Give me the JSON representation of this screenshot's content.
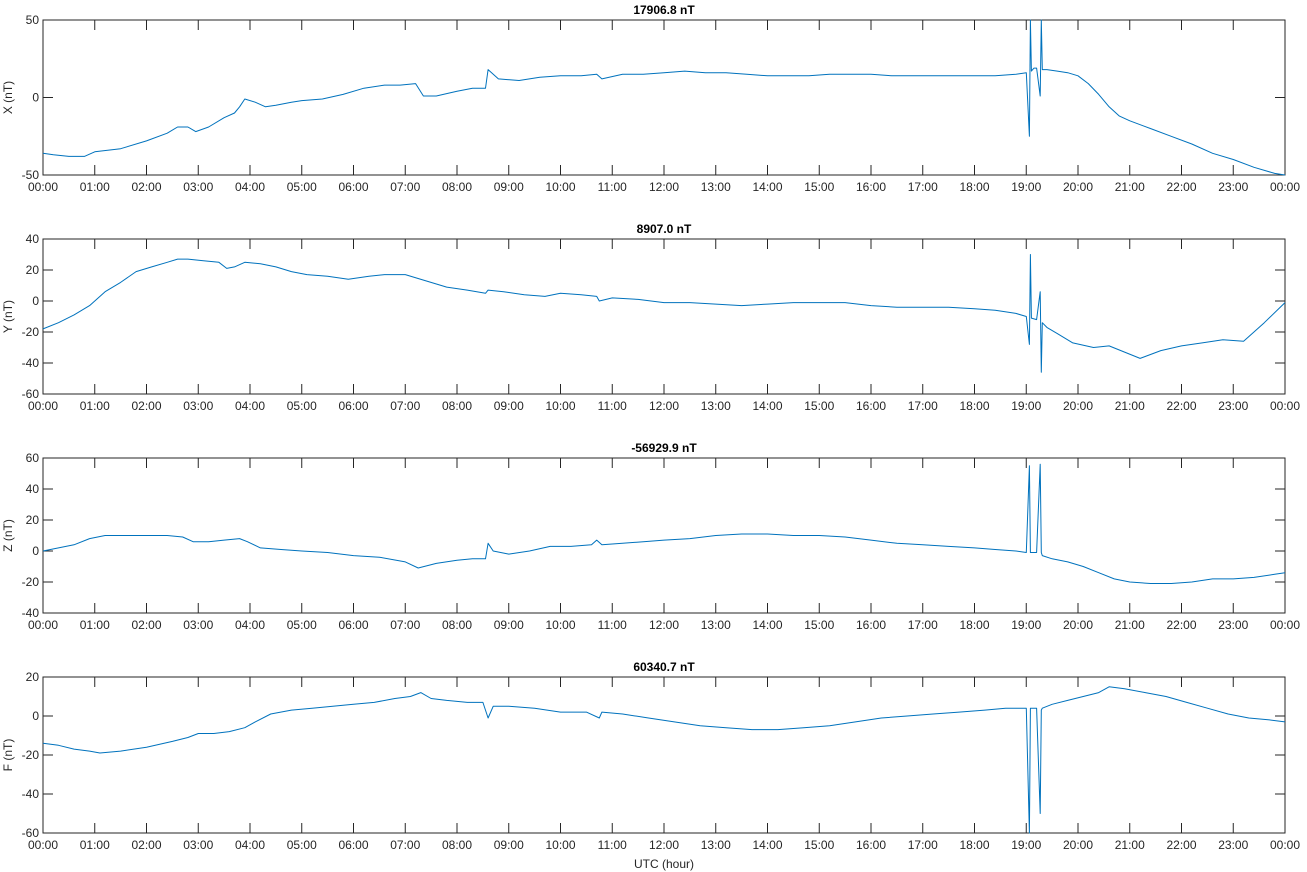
{
  "chart_data": [
    {
      "type": "line",
      "title": "17906.8 nT",
      "ylabel": "X (nT)",
      "xlabel": "",
      "xlim": [
        0,
        24
      ],
      "ylim": [
        -50,
        50
      ],
      "yticks": [
        -50,
        0,
        50
      ],
      "color": "#0072bd",
      "series": [
        {
          "x": [
            0,
            0.2,
            0.5,
            0.8,
            1.0,
            1.5,
            2.0,
            2.4,
            2.6,
            2.8,
            2.95,
            3.2,
            3.5,
            3.7,
            3.8,
            3.9,
            4.1,
            4.3,
            4.5,
            4.8,
            5.0,
            5.4,
            5.8,
            6.2,
            6.6,
            6.9,
            7.2,
            7.35,
            7.6,
            8.0,
            8.3,
            8.55,
            8.6,
            8.8,
            9.2,
            9.6,
            10.0,
            10.4,
            10.7,
            10.8,
            11.2,
            11.6,
            12.0,
            12.4,
            12.8,
            13.2,
            13.6,
            14.0,
            14.4,
            14.8,
            15.2,
            15.6,
            16.0,
            16.4,
            16.8,
            17.2,
            17.6,
            18.0,
            18.4,
            18.8,
            19.0,
            19.06,
            19.08,
            19.1,
            19.15,
            19.2,
            19.27,
            19.29,
            19.31,
            19.4,
            19.6,
            19.8,
            20.0,
            20.2,
            20.4,
            20.6,
            20.8,
            21.0,
            21.4,
            21.8,
            22.2,
            22.6,
            23.0,
            23.4,
            23.8,
            24.0
          ],
          "y": [
            -36,
            -37,
            -38,
            -38,
            -35,
            -33,
            -28,
            -23,
            -19,
            -19,
            -22,
            -19,
            -13,
            -10,
            -6,
            -1,
            -3,
            -6,
            -5,
            -3,
            -2,
            -1,
            2,
            6,
            8,
            8,
            9,
            1,
            1,
            4,
            6,
            6,
            18,
            12,
            11,
            13,
            14,
            14,
            15,
            12,
            15,
            15,
            16,
            17,
            16,
            16,
            15,
            14,
            14,
            14,
            15,
            15,
            15,
            14,
            14,
            14,
            14,
            14,
            14,
            15,
            16,
            -25,
            50,
            17,
            19,
            19,
            1,
            50,
            18,
            18,
            17,
            16,
            14,
            9,
            2,
            -6,
            -12,
            -15,
            -20,
            -25,
            -30,
            -36,
            -40,
            -45,
            -49,
            -50
          ]
        }
      ]
    },
    {
      "type": "line",
      "title": "8907.0 nT",
      "ylabel": "Y (nT)",
      "xlabel": "",
      "xlim": [
        0,
        24
      ],
      "ylim": [
        -60,
        40
      ],
      "yticks": [
        -60,
        -40,
        -20,
        0,
        20,
        40
      ],
      "color": "#0072bd",
      "series": [
        {
          "x": [
            0,
            0.3,
            0.6,
            0.9,
            1.2,
            1.5,
            1.8,
            2.1,
            2.4,
            2.6,
            2.8,
            3.1,
            3.4,
            3.55,
            3.7,
            3.9,
            4.2,
            4.5,
            4.8,
            5.1,
            5.5,
            5.9,
            6.3,
            6.6,
            7.0,
            7.4,
            7.8,
            8.2,
            8.55,
            8.6,
            8.9,
            9.3,
            9.7,
            10.0,
            10.4,
            10.7,
            10.75,
            11.0,
            11.5,
            12.0,
            12.5,
            13.0,
            13.5,
            14.0,
            14.5,
            15.0,
            15.5,
            16.0,
            16.5,
            17.0,
            17.5,
            18.0,
            18.4,
            18.8,
            19.0,
            19.06,
            19.08,
            19.1,
            19.2,
            19.27,
            19.29,
            19.31,
            19.4,
            19.6,
            19.9,
            20.3,
            20.6,
            20.9,
            21.2,
            21.6,
            22.0,
            22.4,
            22.8,
            23.2,
            23.6,
            24.0
          ],
          "y": [
            -18,
            -14,
            -9,
            -3,
            6,
            12,
            19,
            22,
            25,
            27,
            27,
            26,
            25,
            21,
            22,
            25,
            24,
            22,
            19,
            17,
            16,
            14,
            16,
            17,
            17,
            13,
            9,
            7,
            5,
            7,
            6,
            4,
            3,
            5,
            4,
            3,
            0,
            2,
            1,
            -1,
            -1,
            -2,
            -3,
            -2,
            -1,
            -1,
            -1,
            -3,
            -4,
            -4,
            -4,
            -5,
            -6,
            -8,
            -10,
            -28,
            30,
            -11,
            -12,
            6,
            -46,
            -14,
            -17,
            -21,
            -27,
            -30,
            -29,
            -33,
            -37,
            -32,
            -29,
            -27,
            -25,
            -26,
            -14,
            -1
          ]
        }
      ]
    },
    {
      "type": "line",
      "title": "-56929.9 nT",
      "ylabel": "Z (nT)",
      "xlabel": "",
      "xlim": [
        0,
        24
      ],
      "ylim": [
        -40,
        60
      ],
      "yticks": [
        -40,
        -20,
        0,
        20,
        40,
        60
      ],
      "color": "#0072bd",
      "series": [
        {
          "x": [
            0,
            0.3,
            0.6,
            0.9,
            1.2,
            1.6,
            2.0,
            2.4,
            2.7,
            2.9,
            3.2,
            3.5,
            3.8,
            3.95,
            4.2,
            4.6,
            5.0,
            5.5,
            6.0,
            6.5,
            7.0,
            7.25,
            7.6,
            8.0,
            8.3,
            8.55,
            8.6,
            8.7,
            9.0,
            9.4,
            9.8,
            10.2,
            10.6,
            10.7,
            10.8,
            11.2,
            11.6,
            12.0,
            12.5,
            13.0,
            13.5,
            14.0,
            14.5,
            15.0,
            15.5,
            16.0,
            16.5,
            17.0,
            17.5,
            18.0,
            18.4,
            18.8,
            19.0,
            19.06,
            19.08,
            19.1,
            19.2,
            19.27,
            19.29,
            19.31,
            19.5,
            19.8,
            20.1,
            20.4,
            20.7,
            21.0,
            21.4,
            21.8,
            22.2,
            22.6,
            23.0,
            23.4,
            23.8,
            24.0
          ],
          "y": [
            0,
            2,
            4,
            8,
            10,
            10,
            10,
            10,
            9,
            6,
            6,
            7,
            8,
            6,
            2,
            1,
            0,
            -1,
            -3,
            -4,
            -7,
            -11,
            -8,
            -6,
            -5,
            -5,
            5,
            0,
            -2,
            0,
            3,
            3,
            4,
            7,
            4,
            5,
            6,
            7,
            8,
            10,
            11,
            11,
            10,
            10,
            9,
            7,
            5,
            4,
            3,
            2,
            1,
            0,
            -1,
            55,
            -1,
            -1,
            -1,
            56,
            -1,
            -3,
            -5,
            -7,
            -10,
            -14,
            -18,
            -20,
            -21,
            -21,
            -20,
            -18,
            -18,
            -17,
            -15,
            -14
          ]
        }
      ]
    },
    {
      "type": "line",
      "title": "60340.7 nT",
      "ylabel": "F (nT)",
      "xlabel": "UTC (hour)",
      "xlim": [
        0,
        24
      ],
      "ylim": [
        -60,
        20
      ],
      "yticks": [
        -60,
        -40,
        -20,
        0,
        20
      ],
      "color": "#0072bd",
      "series": [
        {
          "x": [
            0,
            0.3,
            0.6,
            0.9,
            1.1,
            1.5,
            2.0,
            2.5,
            2.8,
            3.0,
            3.3,
            3.6,
            3.9,
            4.1,
            4.4,
            4.8,
            5.2,
            5.6,
            6.0,
            6.4,
            6.8,
            7.1,
            7.3,
            7.5,
            7.8,
            8.2,
            8.5,
            8.6,
            8.7,
            9.0,
            9.5,
            10.0,
            10.5,
            10.75,
            10.8,
            11.2,
            11.7,
            12.2,
            12.7,
            13.2,
            13.7,
            14.2,
            14.7,
            15.2,
            15.7,
            16.2,
            16.7,
            17.2,
            17.7,
            18.2,
            18.6,
            18.9,
            19.0,
            19.06,
            19.08,
            19.1,
            19.2,
            19.27,
            19.29,
            19.31,
            19.5,
            19.8,
            20.1,
            20.4,
            20.6,
            20.9,
            21.3,
            21.7,
            22.1,
            22.5,
            22.9,
            23.3,
            23.7,
            24.0
          ],
          "y": [
            -14,
            -15,
            -17,
            -18,
            -19,
            -18,
            -16,
            -13,
            -11,
            -9,
            -9,
            -8,
            -6,
            -3,
            1,
            3,
            4,
            5,
            6,
            7,
            9,
            10,
            12,
            9,
            8,
            7,
            7,
            -1,
            5,
            5,
            4,
            2,
            2,
            -1,
            2,
            1,
            -1,
            -3,
            -5,
            -6,
            -7,
            -7,
            -6,
            -5,
            -3,
            -1,
            0,
            1,
            2,
            3,
            4,
            4,
            4,
            -60,
            4,
            4,
            4,
            -50,
            3,
            4,
            6,
            8,
            10,
            12,
            15,
            14,
            12,
            10,
            7,
            4,
            1,
            -1,
            -2,
            -3
          ]
        }
      ]
    }
  ],
  "xticks": [
    "00:00",
    "01:00",
    "02:00",
    "03:00",
    "04:00",
    "05:00",
    "06:00",
    "07:00",
    "08:00",
    "09:00",
    "10:00",
    "11:00",
    "12:00",
    "13:00",
    "14:00",
    "15:00",
    "16:00",
    "17:00",
    "18:00",
    "19:00",
    "20:00",
    "21:00",
    "22:00",
    "23:00",
    "00:00"
  ]
}
